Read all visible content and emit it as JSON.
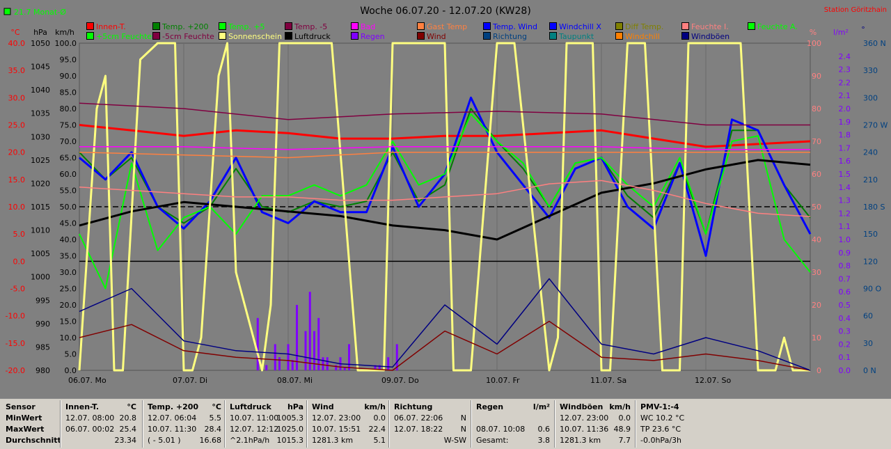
{
  "header": {
    "title": "Woche 06.07.20 - 12.07.20 (KW28)",
    "station": "Station Göritzhain",
    "month_avg": "21.7 Monat-Ø"
  },
  "axes": {
    "unit_c": "°C",
    "unit_hpa": "hPa",
    "unit_kmh": "km/h",
    "unit_pct": "%",
    "unit_lm2": "l/m²",
    "unit_deg": "°",
    "temp_ticks": [
      "40.0",
      "35.0",
      "30.0",
      "25.0",
      "20.0",
      "15.0",
      "10.0",
      "5.0",
      "0.0",
      "-5.0",
      "-10.0",
      "-15.0",
      "-20.0"
    ],
    "hpa_ticks": [
      "1050",
      "1045",
      "1040",
      "1035",
      "1030",
      "1025",
      "1020",
      "1015",
      "1010",
      "1005",
      "1000",
      "995",
      "990",
      "985",
      "980"
    ],
    "kmh_ticks": [
      "100.0",
      "95.0",
      "90.0",
      "85.0",
      "80.0",
      "75.0",
      "70.0",
      "65.0",
      "60.0",
      "55.0",
      "50.0",
      "45.0",
      "40.0",
      "35.0",
      "30.0",
      "25.0",
      "20.0",
      "15.0",
      "10.0",
      "5.0",
      "0.0"
    ],
    "pct_ticks": [
      "100",
      "90",
      "80",
      "70",
      "60",
      "50",
      "40",
      "30",
      "20",
      "10",
      "0"
    ],
    "rain_ticks": [
      "2.4",
      "2.3",
      "2.2",
      "2.1",
      "2.0",
      "1.9",
      "1.8",
      "1.7",
      "1.6",
      "1.5",
      "1.4",
      "1.3",
      "1.2",
      "1.1",
      "1.0",
      "0.9",
      "0.8",
      "0.7",
      "0.6",
      "0.5",
      "0.4",
      "0.3",
      "0.2",
      "0.1",
      "0.0"
    ],
    "dir_ticks": [
      "360 N",
      "330",
      "300",
      "270 W",
      "240",
      "210",
      "180 S",
      "150",
      "120",
      "90 O",
      "60",
      "30",
      "0 N"
    ],
    "day_labels": [
      "06.07. Mo",
      "07.07. Di",
      "08.07. Mi",
      "09.07. Do",
      "10.07. Fr",
      "11.07. Sa",
      "12.07. So"
    ]
  },
  "legend": [
    {
      "label": "Innen-T.",
      "color": "#ff0000"
    },
    {
      "label": "Temp. +200",
      "color": "#008000"
    },
    {
      "label": "Temp. +5",
      "color": "#00ff00"
    },
    {
      "label": "Temp. -5",
      "color": "#800040"
    },
    {
      "label": "Bad",
      "color": "#ff00ff"
    },
    {
      "label": "Gast Temp",
      "color": "#ff8040"
    },
    {
      "label": "Temp. Wind",
      "color": "#0000ff"
    },
    {
      "label": "Windchill X",
      "color": "#0000ff"
    },
    {
      "label": "Diff Temp.",
      "color": "#808000"
    },
    {
      "label": "Feuchte I.",
      "color": "#ff8080"
    },
    {
      "label": "Feuchte A.",
      "color": "#00ff00"
    },
    {
      "label": "+5cm Feuchte",
      "color": "#00ff00"
    },
    {
      "label": "-5cm Feuchte",
      "color": "#800040"
    },
    {
      "label": "Sonnenschein",
      "color": "#ffff80"
    },
    {
      "label": "Luftdruck",
      "color": "#000000"
    },
    {
      "label": "Regen",
      "color": "#8000ff"
    },
    {
      "label": "Wind",
      "color": "#800000"
    },
    {
      "label": "Richtung",
      "color": "#004080"
    },
    {
      "label": "Taupunkt",
      "color": "#008080"
    },
    {
      "label": "Windchill",
      "color": "#ff8000"
    },
    {
      "label": "Windböen",
      "color": "#000080"
    }
  ],
  "chart_data": {
    "type": "line",
    "title": "Woche 06.07.20 - 12.07.20 (KW28)",
    "x_unit": "hours since 06.07. 00:00",
    "xlim": [
      0,
      168
    ],
    "ylim_temp": [
      -20,
      40
    ],
    "ylim_hpa": [
      980,
      1050
    ],
    "ylim_kmh": [
      0,
      100
    ],
    "ylim_pct": [
      0,
      100
    ],
    "ylim_rain": [
      0,
      2.5
    ],
    "series": [
      {
        "name": "Innen-T.",
        "axis": "temp",
        "color": "#ff0000",
        "x": [
          0,
          12,
          24,
          36,
          48,
          60,
          72,
          84,
          96,
          108,
          120,
          132,
          144,
          156,
          168
        ],
        "y": [
          25,
          24,
          23,
          24,
          23.5,
          22.5,
          22.5,
          23,
          23,
          23.5,
          24,
          22.5,
          21,
          21.5,
          22
        ]
      },
      {
        "name": "Temp. +200",
        "axis": "temp",
        "color": "#008000",
        "x": [
          0,
          6,
          12,
          18,
          24,
          30,
          36,
          42,
          48,
          54,
          60,
          66,
          72,
          78,
          84,
          90,
          96,
          102,
          108,
          114,
          120,
          126,
          132,
          138,
          144,
          150,
          156,
          162,
          168
        ],
        "y": [
          20,
          15,
          19,
          10,
          7,
          10,
          17,
          10,
          9,
          11,
          10,
          11,
          20,
          11,
          14,
          28,
          22,
          17,
          10,
          18,
          19,
          12,
          8,
          18,
          5,
          24,
          24,
          14,
          8
        ]
      },
      {
        "name": "Temp. Wind",
        "axis": "temp",
        "color": "#0000ff",
        "x": [
          0,
          6,
          12,
          18,
          24,
          30,
          36,
          42,
          48,
          54,
          60,
          66,
          72,
          78,
          84,
          90,
          96,
          102,
          108,
          114,
          120,
          126,
          132,
          138,
          144,
          150,
          156,
          162,
          168
        ],
        "y": [
          19,
          15,
          20,
          10,
          6,
          11,
          19,
          9,
          7,
          11,
          9,
          9,
          21,
          10,
          16,
          30,
          20,
          14,
          8,
          17,
          19,
          10,
          6,
          18,
          1,
          26,
          24,
          14,
          5
        ]
      },
      {
        "name": "Temp. +5",
        "axis": "temp",
        "color": "#00ff00",
        "x": [
          0,
          6,
          12,
          18,
          24,
          30,
          36,
          42,
          48,
          54,
          60,
          66,
          72,
          78,
          84,
          90,
          96,
          102,
          108,
          114,
          120,
          126,
          132,
          138,
          144,
          150,
          156,
          162,
          168
        ],
        "y": [
          5,
          -5,
          18,
          2,
          8,
          10,
          5,
          12,
          12,
          14,
          12,
          14,
          22,
          14,
          16,
          27,
          22,
          18,
          10,
          18,
          19,
          14,
          10,
          19,
          5,
          22,
          23,
          4,
          -2
        ]
      },
      {
        "name": "Luftdruck",
        "axis": "hpa",
        "color": "#000000",
        "x": [
          0,
          12,
          24,
          36,
          48,
          60,
          72,
          84,
          96,
          108,
          120,
          132,
          144,
          156,
          168
        ],
        "y": [
          1011,
          1014,
          1016,
          1015,
          1014,
          1013,
          1011,
          1010,
          1008,
          1013,
          1018,
          1020,
          1023,
          1025,
          1024
        ]
      },
      {
        "name": "Sonnenschein",
        "axis": "kmh",
        "color": "#ffff80",
        "x": [
          0,
          4,
          6,
          8,
          10,
          14,
          18,
          22,
          24,
          26,
          28,
          32,
          34,
          36,
          42,
          44,
          46,
          50,
          54,
          58,
          64,
          66,
          70,
          72,
          78,
          84,
          86,
          90,
          96,
          100,
          108,
          110,
          112,
          114,
          118,
          120,
          122,
          126,
          130,
          134,
          138,
          140,
          144,
          148,
          152,
          156,
          160,
          162,
          164,
          168
        ],
        "y": [
          0,
          80,
          90,
          0,
          0,
          95,
          100,
          100,
          0,
          0,
          10,
          90,
          100,
          30,
          0,
          20,
          100,
          100,
          100,
          100,
          0,
          0,
          0,
          100,
          100,
          100,
          0,
          0,
          100,
          100,
          0,
          10,
          100,
          100,
          100,
          0,
          0,
          100,
          100,
          0,
          0,
          100,
          100,
          100,
          100,
          0,
          0,
          10,
          0,
          0
        ]
      },
      {
        "name": "Wind",
        "axis": "kmh",
        "color": "#800000",
        "x": [
          0,
          12,
          24,
          36,
          48,
          60,
          72,
          84,
          96,
          108,
          120,
          132,
          144,
          156,
          168
        ],
        "y": [
          10,
          14,
          6,
          4,
          3,
          1,
          0,
          12,
          5,
          15,
          4,
          3,
          5,
          3,
          0
        ]
      },
      {
        "name": "Windböen",
        "axis": "kmh",
        "color": "#000080",
        "x": [
          0,
          12,
          24,
          36,
          48,
          60,
          72,
          84,
          96,
          108,
          120,
          132,
          144,
          156,
          168
        ],
        "y": [
          18,
          25,
          9,
          6,
          5,
          2,
          1,
          20,
          8,
          28,
          8,
          5,
          10,
          6,
          0
        ]
      },
      {
        "name": "Feuchte I.",
        "axis": "pct",
        "color": "#ff8080",
        "x": [
          0,
          12,
          24,
          36,
          48,
          60,
          72,
          84,
          96,
          108,
          120,
          132,
          144,
          156,
          168
        ],
        "y": [
          56,
          55,
          54,
          53,
          53,
          52,
          52,
          53,
          54,
          57,
          58,
          55,
          51,
          48,
          47
        ]
      },
      {
        "name": "Gast Temp",
        "axis": "temp",
        "color": "#ff8040",
        "x": [
          0,
          24,
          48,
          72,
          96,
          120,
          144,
          168
        ],
        "y": [
          20,
          19.5,
          19,
          20,
          20,
          20,
          20,
          20
        ]
      },
      {
        "name": "Bad",
        "axis": "temp",
        "color": "#ff00ff",
        "x": [
          0,
          24,
          48,
          72,
          96,
          120,
          144,
          168
        ],
        "y": [
          21,
          21,
          20.5,
          21,
          21,
          21,
          20.5,
          20.5
        ]
      },
      {
        "name": "Temp. -5",
        "axis": "temp",
        "color": "#800040",
        "x": [
          0,
          24,
          48,
          72,
          96,
          120,
          144,
          168
        ],
        "y": [
          29,
          28,
          26,
          27,
          27.5,
          27,
          25,
          25
        ]
      },
      {
        "name": "Regen",
        "axis": "rain",
        "color": "#8000ff",
        "type": "bar",
        "x": [
          41,
          43,
          45,
          46,
          48,
          49,
          50,
          52,
          53,
          54,
          55,
          56,
          57,
          59,
          60,
          61,
          62,
          68,
          69,
          71,
          73
        ],
        "y": [
          0.4,
          0.04,
          0.2,
          0.1,
          0.2,
          0.08,
          0.5,
          0.3,
          0.6,
          0.3,
          0.4,
          0.1,
          0.1,
          0.04,
          0.1,
          0.02,
          0.2,
          0.04,
          0.04,
          0.1,
          0.2
        ]
      }
    ],
    "reference_lines": [
      {
        "axis": "temp",
        "value": 10
      },
      {
        "axis": "temp",
        "value": 0
      }
    ]
  },
  "table": {
    "col0": {
      "sensor": "Sensor",
      "min": "MinWert",
      "max": "MaxWert",
      "avg": "Durchschnitt"
    },
    "col1": {
      "head": "Innen-T.",
      "unit": "°C",
      "min_date": "12.07.",
      "min_time": "08:00",
      "min_val": "20.8",
      "max_date": "06.07.",
      "max_time": "00:02",
      "max_val": "25.4",
      "avg": "23.34"
    },
    "col2": {
      "head": "Temp. +200",
      "unit": "°C",
      "min_date": "12.07.",
      "min_time": "06:04",
      "min_val": "5.5",
      "max_date": "10.07.",
      "max_time": "11:30",
      "max_val": "28.4",
      "avg_note": "( - 5.01 )",
      "avg": "16.68"
    },
    "col3": {
      "head": "Luftdruck",
      "unit": "hPa",
      "min_date": "10.07.",
      "min_time": "11:00",
      "min_val": "1005.3",
      "max_date": "12.07.",
      "max_time": "12:12",
      "max_val": "1025.0",
      "avg_note": "^2.1hPa/h",
      "avg": "1015.3"
    },
    "col4": {
      "head": "Wind",
      "unit": "km/h",
      "min_date": "12.07.",
      "min_time": "23:00",
      "min_val": "0.0",
      "max_date": "10.07.",
      "max_time": "15:51",
      "max_val": "22.4",
      "avg_note": "1281.3 km",
      "avg": "5.1"
    },
    "col5": {
      "head": "Richtung",
      "min_date": "06.07.",
      "min_time": "22:06",
      "min_val": "N",
      "max_date": "12.07.",
      "max_time": "18:22",
      "max_val": "N",
      "avg": "W-SW"
    },
    "col6": {
      "head": "Regen",
      "unit": "l/m²",
      "max_date": "08.07.",
      "max_time": "10:08",
      "max_val": "0.6",
      "avg_note": "Gesamt:",
      "avg": "3.8"
    },
    "col7": {
      "head": "Windböen",
      "unit": "km/h",
      "min_date": "12.07.",
      "min_time": "23:00",
      "min_val": "0.0",
      "max_date": "10.07.",
      "max_time": "11:36",
      "max_val": "48.9",
      "avg_note": "1281.3 km",
      "avg": "7.7"
    },
    "col8": {
      "head": "PMV-1:-4",
      "l1": "WC 10.2 °C",
      "l2": "TP 23.6 °C",
      "l3": "-0.0hPa/3h"
    }
  }
}
